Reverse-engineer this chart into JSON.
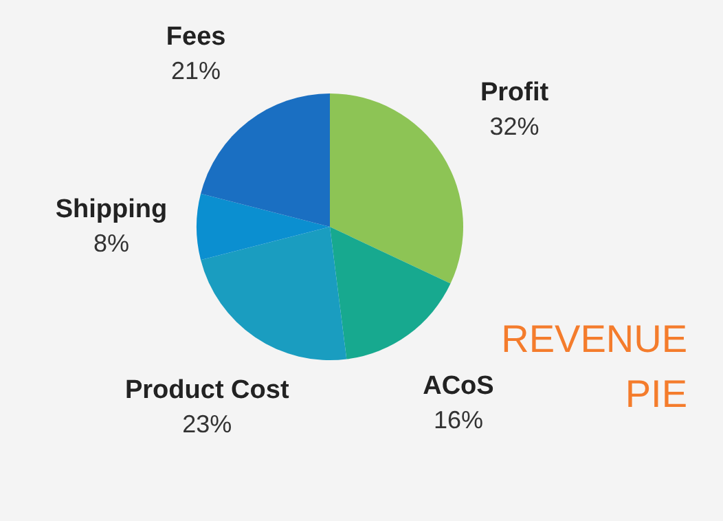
{
  "chart_data": {
    "type": "pie",
    "title": "REVENUE PIE",
    "categories": [
      "Profit",
      "ACoS",
      "Product Cost",
      "Shipping",
      "Fees"
    ],
    "values": [
      32,
      16,
      23,
      8,
      21
    ],
    "colors": [
      "#8dc455",
      "#17a98f",
      "#1a9dc0",
      "#0b8fd0",
      "#1a6fc2"
    ],
    "value_labels": [
      "32%",
      "16%",
      "23%",
      "8%",
      "21%"
    ]
  }
}
